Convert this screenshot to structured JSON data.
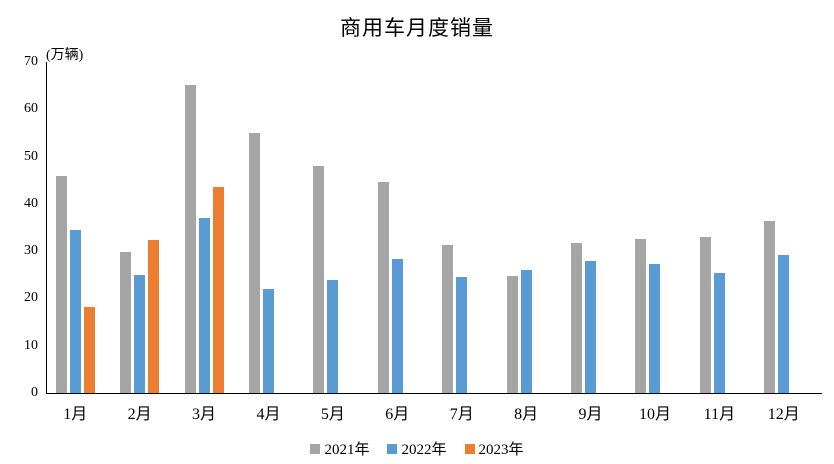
{
  "chart_data": {
    "type": "bar",
    "title": "商用车月度销量",
    "unit_label": "(万辆)",
    "categories": [
      "1月",
      "2月",
      "3月",
      "4月",
      "5月",
      "6月",
      "7月",
      "8月",
      "9月",
      "10月",
      "11月",
      "12月"
    ],
    "series": [
      {
        "name": "2021年",
        "color": "#A5A5A5",
        "values": [
          45.8,
          29.9,
          65.2,
          54.9,
          48.1,
          44.6,
          31.3,
          24.8,
          31.7,
          32.6,
          33.0,
          36.4
        ]
      },
      {
        "name": "2022年",
        "color": "#5B9BD5",
        "values": [
          34.5,
          25.0,
          37.0,
          21.9,
          24.0,
          28.4,
          24.6,
          26.1,
          28.0,
          27.3,
          25.4,
          29.2
        ]
      },
      {
        "name": "2023年",
        "color": "#ED7D31",
        "values": [
          18.1,
          32.4,
          43.5,
          null,
          null,
          null,
          null,
          null,
          null,
          null,
          null,
          null
        ]
      }
    ],
    "y_ticks": [
      0,
      10,
      20,
      30,
      40,
      50,
      60,
      70
    ],
    "ylim": [
      0,
      70
    ],
    "xlabel": "",
    "ylabel": "",
    "grid": false,
    "legend_position": "bottom"
  }
}
